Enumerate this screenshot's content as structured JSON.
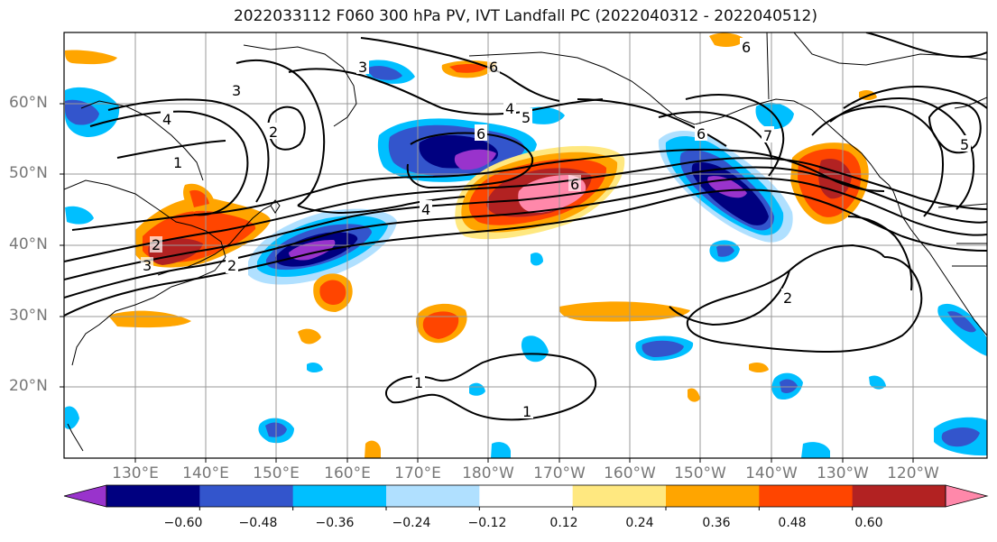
{
  "title": "2022033112 F060 300 hPa PV, IVT Landfall PC (2022040312 - 2022040512)",
  "latitude_labels": [
    "60°N",
    "50°N",
    "40°N",
    "30°N",
    "20°N"
  ],
  "longitude_labels": [
    "130°E",
    "140°E",
    "150°E",
    "160°E",
    "170°E",
    "180°W",
    "170°W",
    "160°W",
    "150°W",
    "140°W",
    "130°W",
    "120°W"
  ],
  "colorbar": {
    "colors": [
      "#9933cc",
      "#000080",
      "#3355cc",
      "#00bfff",
      "#b0e0ff",
      "#ffffff",
      "#ffe880",
      "#ffa500",
      "#ff4500",
      "#b22222",
      "#ff88aa"
    ],
    "tick_labels": [
      "−0.60",
      "−0.48",
      "−0.36",
      "−0.24",
      "−0.12",
      "0.12",
      "0.24",
      "0.36",
      "0.48",
      "0.60"
    ],
    "extend": "both"
  },
  "contour_labels": [
    "1",
    "1",
    "2",
    "2",
    "2",
    "3",
    "3",
    "3",
    "4",
    "4",
    "4",
    "5",
    "5",
    "6",
    "6",
    "6",
    "6",
    "6",
    "7"
  ],
  "gridlines": true
}
